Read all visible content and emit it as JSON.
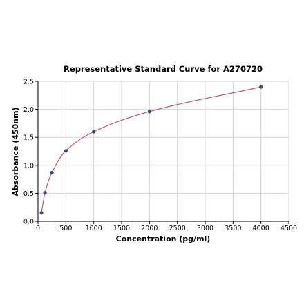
{
  "chart_data": {
    "type": "scatter",
    "title": "Representative Standard Curve for A270720",
    "xlabel": "Concentration (pg/ml)",
    "ylabel": "Absorbance (450nm)",
    "xlim": [
      0,
      4500
    ],
    "ylim": [
      0,
      2.5
    ],
    "x_ticks": [
      0,
      500,
      1000,
      1500,
      2000,
      2500,
      3000,
      3500,
      4000,
      4500
    ],
    "y_ticks": [
      0.0,
      0.5,
      1.0,
      1.5,
      2.0,
      2.5
    ],
    "x_tick_labels": [
      "0",
      "500",
      "1000",
      "1500",
      "2000",
      "2500",
      "3000",
      "3500",
      "4000",
      "4500"
    ],
    "y_tick_labels": [
      "0.0",
      "0.5",
      "1.0",
      "1.5",
      "2.0",
      "2.5"
    ],
    "grid": true,
    "series": [
      {
        "kind": "points",
        "color": "#3a4a7a",
        "x": [
          62.5,
          125,
          250,
          500,
          1000,
          2000,
          4000
        ],
        "y": [
          0.15,
          0.51,
          0.87,
          1.26,
          1.6,
          1.96,
          2.4
        ]
      },
      {
        "kind": "fitted-curve",
        "color": "#b85a6e"
      }
    ]
  }
}
